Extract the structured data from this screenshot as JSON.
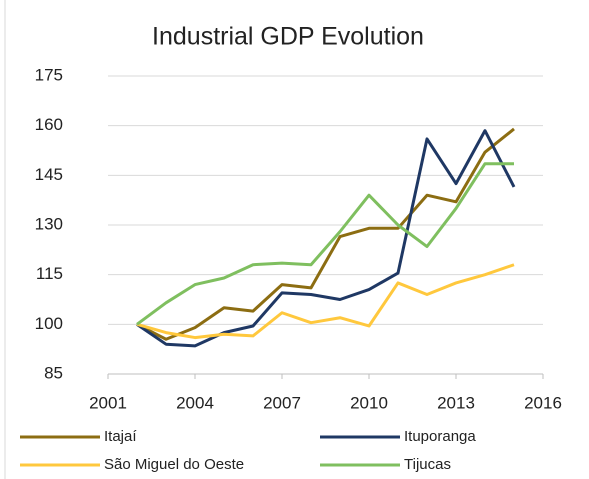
{
  "chart_data": {
    "type": "line",
    "title": "Industrial GDP Evolution",
    "x": [
      2002,
      2003,
      2004,
      2005,
      2006,
      2007,
      2008,
      2009,
      2010,
      2011,
      2012,
      2013,
      2014,
      2015
    ],
    "series": [
      {
        "name": "Itajaí",
        "color": "#8c6d12",
        "values": [
          100,
          95.5,
          99,
          105,
          104,
          112,
          111,
          126.5,
          129,
          129,
          139,
          137,
          152,
          159
        ]
      },
      {
        "name": "Ituporanga",
        "color": "#1f3864",
        "values": [
          100,
          94,
          93.5,
          97.5,
          99.5,
          109.5,
          109,
          107.5,
          110.5,
          115.5,
          156,
          142.5,
          158.5,
          141.5
        ]
      },
      {
        "name": "São Miguel do Oeste",
        "color": "#ffc83d",
        "values": [
          100,
          97.5,
          96,
          97,
          96.5,
          103.5,
          100.5,
          102,
          99.5,
          112.5,
          109,
          112.5,
          115,
          118
        ]
      },
      {
        "name": "Tijucas",
        "color": "#7fbf5f",
        "values": [
          100,
          106.5,
          112,
          114,
          118,
          118.5,
          118,
          128,
          139,
          130,
          123.5,
          135,
          148.5,
          148.5
        ]
      }
    ],
    "xlim": [
      2001,
      2016
    ],
    "xticks": [
      2001,
      2004,
      2007,
      2010,
      2013,
      2016
    ],
    "ylim": [
      85,
      175
    ],
    "yticks": [
      85,
      100,
      115,
      130,
      145,
      160,
      175
    ],
    "grid": true,
    "legend": "bottom"
  }
}
